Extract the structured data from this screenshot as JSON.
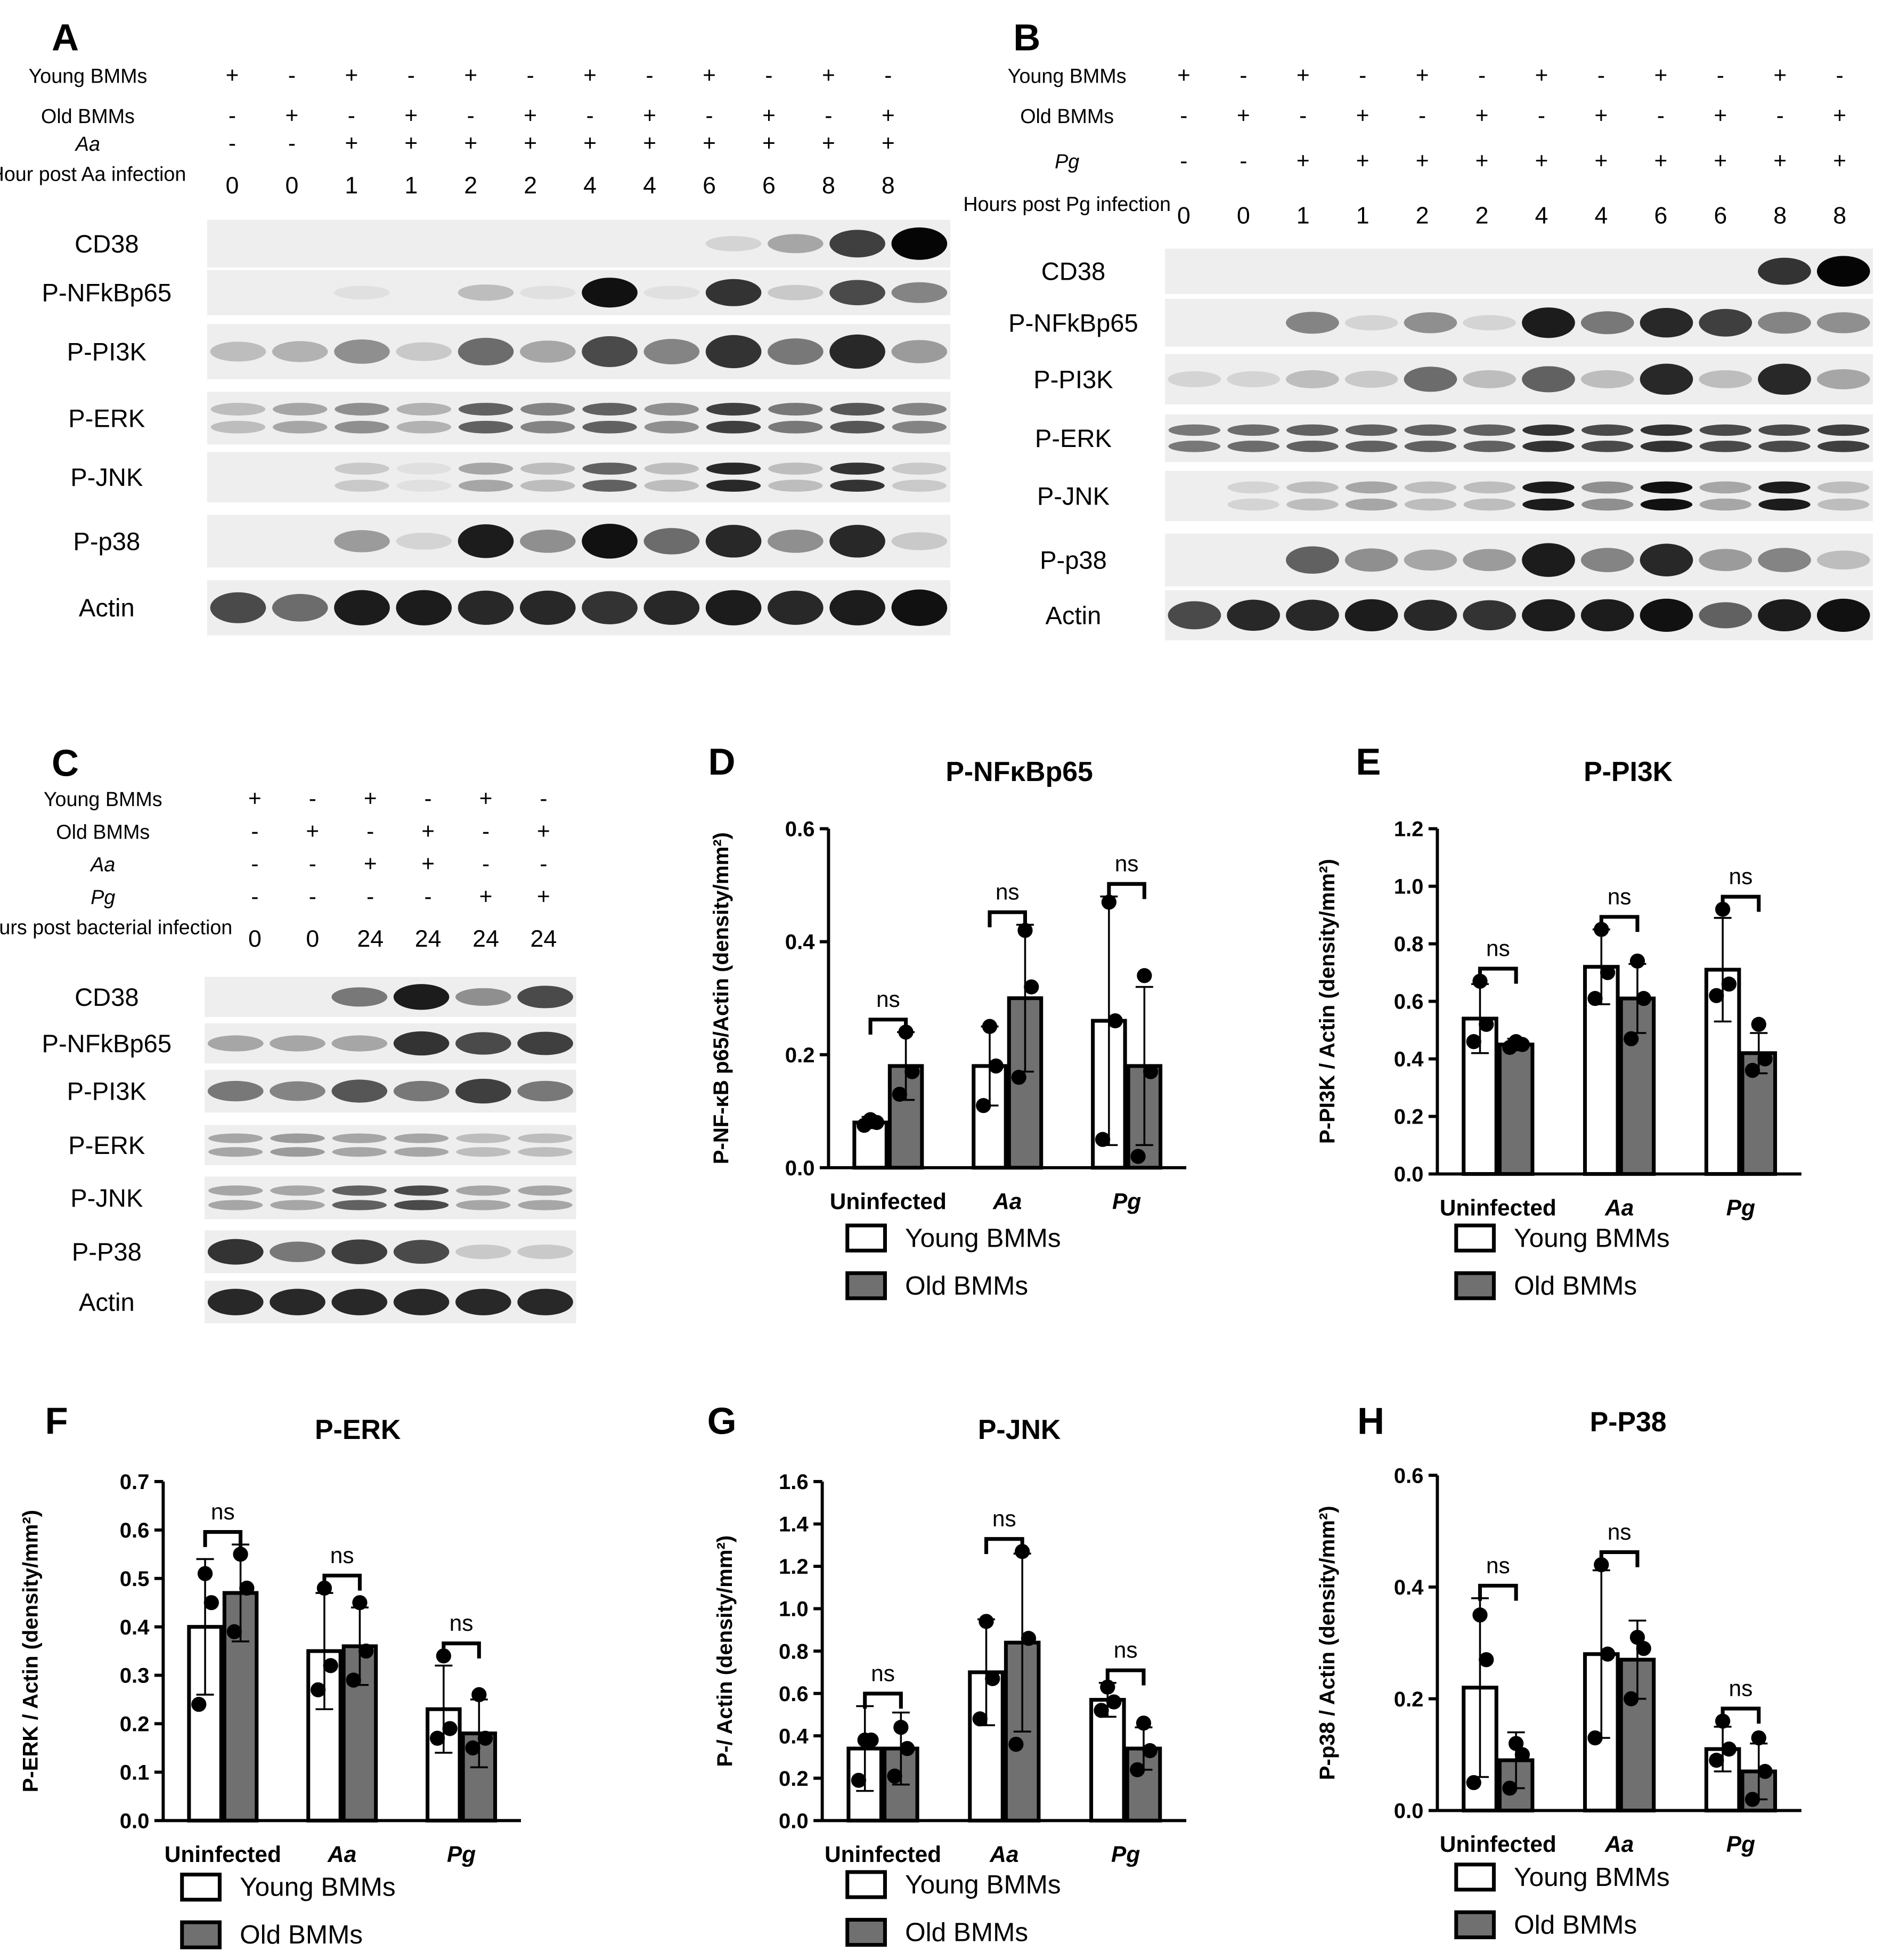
{
  "panels": [
    {
      "letter": "A",
      "condition_rows": [
        {
          "label": "Young BMMs",
          "values": [
            "+",
            "-",
            "+",
            "-",
            "+",
            "-",
            "+",
            "-",
            "+",
            "-",
            "+",
            "-"
          ]
        },
        {
          "label": "Old BMMs",
          "values": [
            "-",
            "+",
            "-",
            "+",
            "-",
            "+",
            "-",
            "+",
            "-",
            "+",
            "-",
            "+"
          ]
        },
        {
          "label": "Aa",
          "values": [
            "-",
            "-",
            "+",
            "+",
            "+",
            "+",
            "+",
            "+",
            "+",
            "+",
            "+",
            "+"
          ]
        },
        {
          "label": "Hour post Aa infection",
          "values": [
            "0",
            "0",
            "1",
            "1",
            "2",
            "2",
            "4",
            "4",
            "6",
            "6",
            "8",
            "8"
          ]
        }
      ],
      "blots": [
        {
          "label": "CD38",
          "intensity": [
            0,
            0,
            0,
            0,
            0,
            0,
            0,
            0,
            0.1,
            0.3,
            0.75,
            1.0
          ]
        },
        {
          "label": "P-NFkBp65",
          "intensity": [
            0,
            0,
            0.05,
            0,
            0.2,
            0.05,
            0.95,
            0.05,
            0.8,
            0.15,
            0.7,
            0.45
          ]
        },
        {
          "label": "P-PI3K",
          "intensity": [
            0.2,
            0.25,
            0.4,
            0.15,
            0.55,
            0.3,
            0.7,
            0.45,
            0.8,
            0.5,
            0.85,
            0.35
          ]
        },
        {
          "label": "P-ERK",
          "intensity": [
            0.2,
            0.3,
            0.4,
            0.25,
            0.6,
            0.45,
            0.6,
            0.4,
            0.75,
            0.5,
            0.65,
            0.45
          ]
        },
        {
          "label": "P-JNK",
          "intensity": [
            0,
            0,
            0.15,
            0.05,
            0.3,
            0.2,
            0.6,
            0.2,
            0.85,
            0.2,
            0.8,
            0.15
          ]
        },
        {
          "label": "P-p38",
          "intensity": [
            0,
            0,
            0.35,
            0.1,
            0.9,
            0.4,
            0.95,
            0.55,
            0.85,
            0.4,
            0.85,
            0.15
          ]
        },
        {
          "label": "Actin",
          "intensity": [
            0.7,
            0.55,
            0.9,
            0.9,
            0.85,
            0.85,
            0.8,
            0.85,
            0.9,
            0.85,
            0.9,
            0.95
          ]
        }
      ]
    },
    {
      "letter": "B",
      "condition_rows": [
        {
          "label": "Young BMMs",
          "values": [
            "+",
            "-",
            "+",
            "-",
            "+",
            "-",
            "+",
            "-",
            "+",
            "-",
            "+",
            "-"
          ]
        },
        {
          "label": "Old BMMs",
          "values": [
            "-",
            "+",
            "-",
            "+",
            "-",
            "+",
            "-",
            "+",
            "-",
            "+",
            "-",
            "+"
          ]
        },
        {
          "label": "Pg",
          "values": [
            "-",
            "-",
            "+",
            "+",
            "+",
            "+",
            "+",
            "+",
            "+",
            "+",
            "+",
            "+"
          ]
        },
        {
          "label": "Hours post Pg infection",
          "values": [
            "0",
            "0",
            "1",
            "1",
            "2",
            "2",
            "4",
            "4",
            "6",
            "6",
            "8",
            "8"
          ]
        }
      ],
      "blots": [
        {
          "label": "CD38",
          "intensity": [
            0,
            0,
            0,
            0,
            0,
            0,
            0,
            0,
            0,
            0,
            0.8,
            1.0
          ]
        },
        {
          "label": "P-NFkBp65",
          "intensity": [
            0,
            0,
            0.45,
            0.1,
            0.4,
            0.1,
            0.9,
            0.5,
            0.85,
            0.75,
            0.45,
            0.4
          ]
        },
        {
          "label": "P-PI3K",
          "intensity": [
            0.1,
            0.1,
            0.2,
            0.15,
            0.55,
            0.2,
            0.6,
            0.2,
            0.85,
            0.2,
            0.85,
            0.3
          ]
        },
        {
          "label": "P-ERK",
          "intensity": [
            0.5,
            0.55,
            0.6,
            0.6,
            0.6,
            0.6,
            0.8,
            0.7,
            0.8,
            0.7,
            0.7,
            0.75
          ]
        },
        {
          "label": "P-JNK",
          "intensity": [
            0,
            0.1,
            0.2,
            0.3,
            0.2,
            0.2,
            0.9,
            0.4,
            0.95,
            0.3,
            0.9,
            0.2
          ]
        },
        {
          "label": "P-p38",
          "intensity": [
            0,
            0,
            0.6,
            0.4,
            0.3,
            0.35,
            0.9,
            0.45,
            0.85,
            0.35,
            0.45,
            0.2
          ]
        },
        {
          "label": "Actin",
          "intensity": [
            0.7,
            0.85,
            0.85,
            0.9,
            0.85,
            0.8,
            0.9,
            0.9,
            0.95,
            0.6,
            0.9,
            0.95
          ]
        }
      ]
    },
    {
      "letter": "C",
      "condition_rows": [
        {
          "label": "Young BMMs",
          "values": [
            "+",
            "-",
            "+",
            "-",
            "+",
            "-"
          ]
        },
        {
          "label": "Old BMMs",
          "values": [
            "-",
            "+",
            "-",
            "+",
            "-",
            "+"
          ]
        },
        {
          "label": "Aa",
          "values": [
            "-",
            "-",
            "+",
            "+",
            "-",
            "-"
          ]
        },
        {
          "label": "Pg",
          "values": [
            "-",
            "-",
            "-",
            "-",
            "+",
            "+"
          ]
        },
        {
          "label": "Hours post bacterial infection",
          "values": [
            "0",
            "0",
            "24",
            "24",
            "24",
            "24"
          ]
        }
      ],
      "blots": [
        {
          "label": "CD38",
          "intensity": [
            0,
            0,
            0.5,
            0.9,
            0.4,
            0.7
          ]
        },
        {
          "label": "P-NFkBp65",
          "intensity": [
            0.3,
            0.3,
            0.3,
            0.8,
            0.7,
            0.75
          ]
        },
        {
          "label": "P-PI3K",
          "intensity": [
            0.5,
            0.45,
            0.65,
            0.5,
            0.75,
            0.5
          ]
        },
        {
          "label": "P-ERK",
          "intensity": [
            0.3,
            0.35,
            0.3,
            0.3,
            0.2,
            0.2
          ]
        },
        {
          "label": "P-JNK",
          "intensity": [
            0.3,
            0.3,
            0.6,
            0.7,
            0.3,
            0.3
          ]
        },
        {
          "label": "P-P38",
          "intensity": [
            0.8,
            0.5,
            0.75,
            0.7,
            0.15,
            0.15
          ]
        },
        {
          "label": "Actin",
          "intensity": [
            0.85,
            0.85,
            0.85,
            0.85,
            0.85,
            0.85
          ]
        }
      ]
    }
  ],
  "chart_data": [
    {
      "panel": "D",
      "type": "bar",
      "title": "P-NFκBp65",
      "ylabel": "P-NF-κB p65/Actin (density/mm²)",
      "ylim": [
        0,
        0.6
      ],
      "yticks": [
        "0.0",
        "0.2",
        "0.4",
        "0.6"
      ],
      "categories": [
        "Uninfected",
        "Aa",
        "Pg"
      ],
      "series": [
        {
          "name": "Young BMMs",
          "values": [
            0.08,
            0.18,
            0.26
          ],
          "sd": [
            0.01,
            0.07,
            0.22
          ],
          "points": [
            [
              0.075,
              0.08,
              0.085
            ],
            [
              0.11,
              0.18,
              0.25
            ],
            [
              0.05,
              0.26,
              0.47
            ]
          ]
        },
        {
          "name": "Old BMMs",
          "values": [
            0.18,
            0.3,
            0.18
          ],
          "sd": [
            0.06,
            0.13,
            0.14
          ],
          "points": [
            [
              0.13,
              0.17,
              0.24
            ],
            [
              0.16,
              0.32,
              0.42
            ],
            [
              0.02,
              0.17,
              0.34
            ]
          ]
        }
      ],
      "significance": [
        "ns",
        "ns",
        "ns"
      ],
      "legend": [
        "Young BMMs",
        "Old BMMs"
      ]
    },
    {
      "panel": "E",
      "type": "bar",
      "title": "P-PI3K",
      "ylabel": "P-PI3K / Actin (density/mm²)",
      "ylim": [
        0,
        1.2
      ],
      "yticks": [
        "0.0",
        "0.2",
        "0.4",
        "0.6",
        "0.8",
        "1.0",
        "1.2"
      ],
      "categories": [
        "Uninfected",
        "Aa",
        "Pg"
      ],
      "series": [
        {
          "name": "Young BMMs",
          "values": [
            0.54,
            0.72,
            0.71
          ],
          "sd": [
            0.12,
            0.13,
            0.18
          ],
          "points": [
            [
              0.46,
              0.52,
              0.67
            ],
            [
              0.61,
              0.7,
              0.85
            ],
            [
              0.62,
              0.66,
              0.92
            ]
          ]
        },
        {
          "name": "Old BMMs",
          "values": [
            0.45,
            0.61,
            0.42
          ],
          "sd": [
            0.02,
            0.12,
            0.07
          ],
          "points": [
            [
              0.44,
              0.45,
              0.46
            ],
            [
              0.47,
              0.61,
              0.74
            ],
            [
              0.36,
              0.4,
              0.52
            ]
          ]
        }
      ],
      "significance": [
        "ns",
        "ns",
        "ns"
      ],
      "legend": [
        "Young BMMs",
        "Old BMMs"
      ]
    },
    {
      "panel": "F",
      "type": "bar",
      "title": "P-ERK",
      "ylabel": "P-ERK / Actin (density/mm²)",
      "ylim": [
        0,
        0.7
      ],
      "yticks": [
        "0.0",
        "0.1",
        "0.2",
        "0.3",
        "0.4",
        "0.5",
        "0.6",
        "0.7"
      ],
      "categories": [
        "Uninfected",
        "Aa",
        "Pg"
      ],
      "series": [
        {
          "name": "Young BMMs",
          "values": [
            0.4,
            0.35,
            0.23
          ],
          "sd": [
            0.14,
            0.12,
            0.09
          ],
          "points": [
            [
              0.24,
              0.45,
              0.51
            ],
            [
              0.27,
              0.32,
              0.48
            ],
            [
              0.17,
              0.19,
              0.34
            ]
          ]
        },
        {
          "name": "Old BMMs",
          "values": [
            0.47,
            0.36,
            0.18
          ],
          "sd": [
            0.1,
            0.08,
            0.07
          ],
          "points": [
            [
              0.39,
              0.48,
              0.55
            ],
            [
              0.29,
              0.35,
              0.45
            ],
            [
              0.15,
              0.17,
              0.26
            ]
          ]
        }
      ],
      "significance": [
        "ns",
        "ns",
        "ns"
      ],
      "legend": [
        "Young BMMs",
        "Old BMMs"
      ]
    },
    {
      "panel": "G",
      "type": "bar",
      "title": "P-JNK",
      "ylabel": "P-/ Actin (density/mm²)",
      "ylim": [
        0,
        1.6
      ],
      "yticks": [
        "0.0",
        "0.2",
        "0.4",
        "0.6",
        "0.8",
        "1.0",
        "1.2",
        "1.4",
        "1.6"
      ],
      "categories": [
        "Uninfected",
        "Aa",
        "Pg"
      ],
      "series": [
        {
          "name": "Young BMMs",
          "values": [
            0.34,
            0.7,
            0.57
          ],
          "sd": [
            0.2,
            0.25,
            0.08
          ],
          "points": [
            [
              0.19,
              0.38,
              0.38
            ],
            [
              0.48,
              0.67,
              0.94
            ],
            [
              0.52,
              0.56,
              0.63
            ]
          ]
        },
        {
          "name": "Old BMMs",
          "values": [
            0.34,
            0.84,
            0.34
          ],
          "sd": [
            0.17,
            0.42,
            0.1
          ],
          "points": [
            [
              0.21,
              0.34,
              0.44
            ],
            [
              0.36,
              0.86,
              1.27
            ],
            [
              0.24,
              0.33,
              0.46
            ]
          ]
        }
      ],
      "significance": [
        "ns",
        "ns",
        "ns"
      ],
      "legend": [
        "Young BMMs",
        "Old BMMs"
      ]
    },
    {
      "panel": "H",
      "type": "bar",
      "title": "P-P38",
      "ylabel": "P-p38 / Actin (density/mm²)",
      "ylim": [
        0,
        0.6
      ],
      "yticks": [
        "0.0",
        "0.2",
        "0.4",
        "0.6"
      ],
      "categories": [
        "Uninfected",
        "Aa",
        "Pg"
      ],
      "series": [
        {
          "name": "Young BMMs",
          "values": [
            0.22,
            0.28,
            0.11
          ],
          "sd": [
            0.16,
            0.15,
            0.04
          ],
          "points": [
            [
              0.05,
              0.27,
              0.35
            ],
            [
              0.13,
              0.28,
              0.44
            ],
            [
              0.09,
              0.11,
              0.16
            ]
          ]
        },
        {
          "name": "Old BMMs",
          "values": [
            0.09,
            0.27,
            0.07
          ],
          "sd": [
            0.05,
            0.07,
            0.05
          ],
          "points": [
            [
              0.04,
              0.1,
              0.12
            ],
            [
              0.2,
              0.29,
              0.31
            ],
            [
              0.02,
              0.07,
              0.13
            ]
          ]
        }
      ],
      "significance": [
        "ns",
        "ns",
        "ns"
      ],
      "legend": [
        "Young BMMs",
        "Old BMMs"
      ]
    }
  ]
}
